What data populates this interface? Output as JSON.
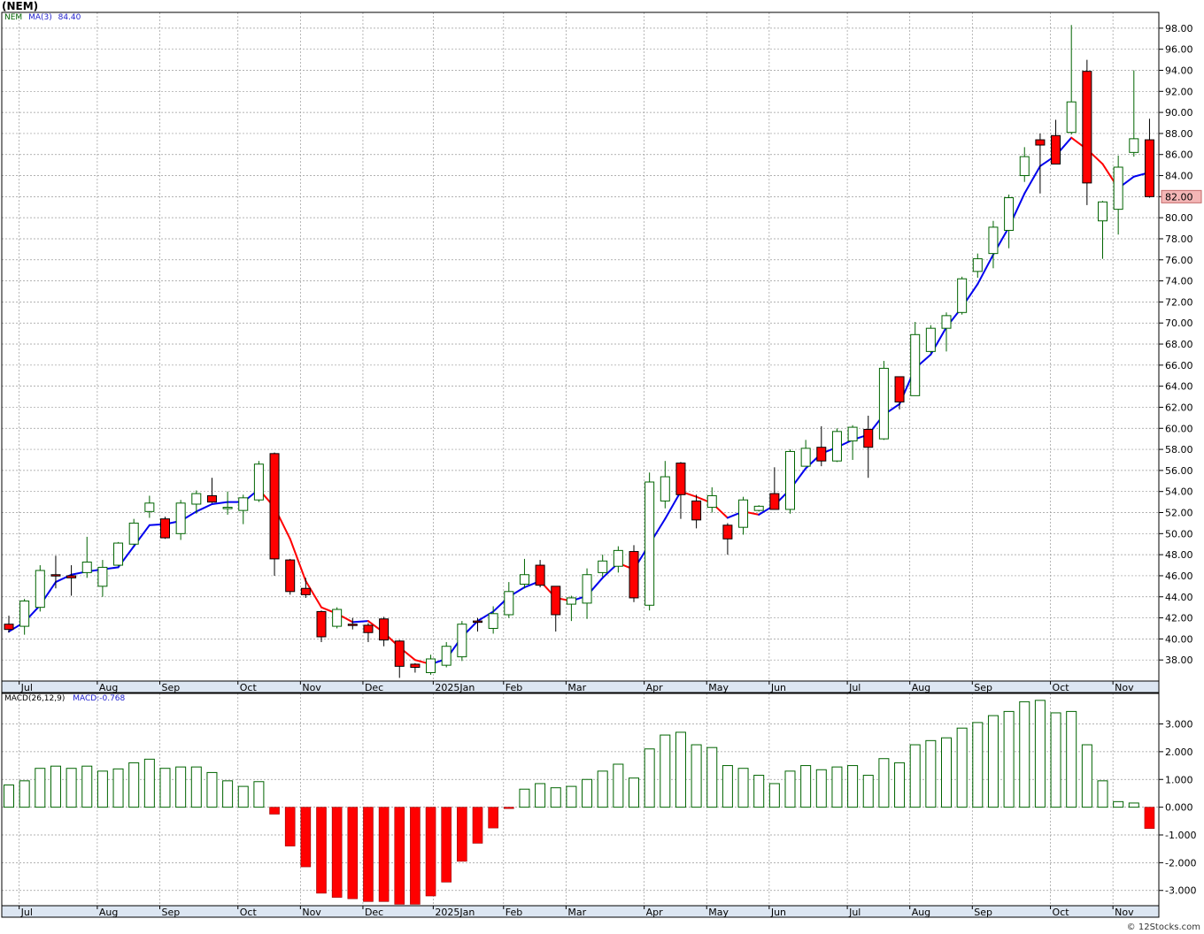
{
  "title": "(NEM)",
  "price_panel": {
    "symbol": "NEM",
    "ma_label": "MA(3)",
    "ma_value": "84.40",
    "last_price": "82.00"
  },
  "macd_panel": {
    "label": "MACD(26,12,9)",
    "value_label": "MACD:",
    "value": "-0.768"
  },
  "credit": "© 12Stocks.com",
  "colors": {
    "up_candle_border": "#006400",
    "down_candle": "#ff0000",
    "ma_up": "#0000ee",
    "ma_down": "#ff0000",
    "grid": "#999999",
    "axis_band": "#dce6f2",
    "last_price_box": "#f4b6b6"
  },
  "chart_data": [
    {
      "type": "candlestick",
      "ylim": [
        36,
        99.5
      ],
      "grid": true,
      "y_ticks": [
        "38.00",
        "40.00",
        "42.00",
        "44.00",
        "46.00",
        "48.00",
        "50.00",
        "52.00",
        "54.00",
        "56.00",
        "58.00",
        "60.00",
        "62.00",
        "64.00",
        "66.00",
        "68.00",
        "70.00",
        "72.00",
        "74.00",
        "76.00",
        "78.00",
        "80.00",
        "82.00",
        "84.00",
        "86.00",
        "88.00",
        "90.00",
        "92.00",
        "94.00",
        "96.00",
        "98.00"
      ],
      "x_ticks": [
        {
          "label": "Jul",
          "index": 1
        },
        {
          "label": "Aug",
          "index": 6
        },
        {
          "label": "Sep",
          "index": 10
        },
        {
          "label": "Oct",
          "index": 15
        },
        {
          "label": "Nov",
          "index": 19
        },
        {
          "label": "Dec",
          "index": 23
        },
        {
          "label": "2025Jan",
          "index": 27.5
        },
        {
          "label": "Feb",
          "index": 32
        },
        {
          "label": "Mar",
          "index": 36
        },
        {
          "label": "Apr",
          "index": 41
        },
        {
          "label": "May",
          "index": 45
        },
        {
          "label": "Jun",
          "index": 49
        },
        {
          "label": "Jul",
          "index": 54
        },
        {
          "label": "Aug",
          "index": 58
        },
        {
          "label": "Sep",
          "index": 62
        },
        {
          "label": "Oct",
          "index": 67
        },
        {
          "label": "Nov",
          "index": 71
        }
      ],
      "candles": [
        {
          "o": 41.4,
          "h": 42.2,
          "l": 40.6,
          "c": 40.9
        },
        {
          "o": 41.2,
          "h": 43.8,
          "l": 40.4,
          "c": 43.6
        },
        {
          "o": 43.0,
          "h": 47.0,
          "l": 42.6,
          "c": 46.5
        },
        {
          "o": 46.1,
          "h": 47.9,
          "l": 44.8,
          "c": 46.0
        },
        {
          "o": 46.0,
          "h": 47.0,
          "l": 44.1,
          "c": 45.8
        },
        {
          "o": 46.3,
          "h": 49.7,
          "l": 45.8,
          "c": 47.3
        },
        {
          "o": 45.0,
          "h": 47.5,
          "l": 44.0,
          "c": 46.8
        },
        {
          "o": 47.0,
          "h": 49.2,
          "l": 46.9,
          "c": 49.1
        },
        {
          "o": 49.0,
          "h": 51.4,
          "l": 48.9,
          "c": 51.0
        },
        {
          "o": 52.1,
          "h": 53.6,
          "l": 51.5,
          "c": 52.9
        },
        {
          "o": 51.4,
          "h": 51.6,
          "l": 49.5,
          "c": 49.6
        },
        {
          "o": 50.0,
          "h": 53.2,
          "l": 49.4,
          "c": 52.9
        },
        {
          "o": 52.8,
          "h": 54.1,
          "l": 51.9,
          "c": 53.8
        },
        {
          "o": 53.6,
          "h": 55.3,
          "l": 52.9,
          "c": 53.0
        },
        {
          "o": 52.5,
          "h": 54.0,
          "l": 51.8,
          "c": 52.5
        },
        {
          "o": 52.2,
          "h": 53.7,
          "l": 50.9,
          "c": 53.4
        },
        {
          "o": 53.2,
          "h": 56.9,
          "l": 53.0,
          "c": 56.6
        },
        {
          "o": 57.6,
          "h": 57.7,
          "l": 46.0,
          "c": 47.6
        },
        {
          "o": 47.5,
          "h": 47.6,
          "l": 44.2,
          "c": 44.5
        },
        {
          "o": 44.8,
          "h": 45.8,
          "l": 43.9,
          "c": 44.2
        },
        {
          "o": 42.6,
          "h": 42.7,
          "l": 39.7,
          "c": 40.2
        },
        {
          "o": 41.2,
          "h": 43.0,
          "l": 41.0,
          "c": 42.8
        },
        {
          "o": 41.4,
          "h": 42.0,
          "l": 40.9,
          "c": 41.3
        },
        {
          "o": 41.3,
          "h": 41.5,
          "l": 39.7,
          "c": 40.6
        },
        {
          "o": 41.9,
          "h": 42.1,
          "l": 39.3,
          "c": 39.9
        },
        {
          "o": 39.8,
          "h": 39.9,
          "l": 36.3,
          "c": 37.4
        },
        {
          "o": 37.6,
          "h": 37.7,
          "l": 36.8,
          "c": 37.3
        },
        {
          "o": 36.8,
          "h": 38.5,
          "l": 36.6,
          "c": 38.1
        },
        {
          "o": 37.5,
          "h": 39.7,
          "l": 37.3,
          "c": 39.3
        },
        {
          "o": 38.3,
          "h": 41.7,
          "l": 37.9,
          "c": 41.4
        },
        {
          "o": 41.7,
          "h": 42.0,
          "l": 40.7,
          "c": 41.6
        },
        {
          "o": 41.0,
          "h": 43.1,
          "l": 40.5,
          "c": 42.4
        },
        {
          "o": 42.3,
          "h": 45.4,
          "l": 42.0,
          "c": 44.5
        },
        {
          "o": 45.2,
          "h": 47.6,
          "l": 44.8,
          "c": 46.1
        },
        {
          "o": 47.0,
          "h": 47.5,
          "l": 44.9,
          "c": 45.1
        },
        {
          "o": 45.0,
          "h": 45.0,
          "l": 40.7,
          "c": 42.3
        },
        {
          "o": 43.3,
          "h": 44.1,
          "l": 41.7,
          "c": 43.9
        },
        {
          "o": 43.4,
          "h": 46.7,
          "l": 41.9,
          "c": 46.1
        },
        {
          "o": 46.3,
          "h": 48.0,
          "l": 45.9,
          "c": 47.4
        },
        {
          "o": 46.9,
          "h": 48.8,
          "l": 46.3,
          "c": 48.4
        },
        {
          "o": 48.3,
          "h": 48.9,
          "l": 43.5,
          "c": 43.9
        },
        {
          "o": 43.2,
          "h": 55.8,
          "l": 42.7,
          "c": 54.9
        },
        {
          "o": 53.1,
          "h": 56.9,
          "l": 52.4,
          "c": 55.4
        },
        {
          "o": 56.7,
          "h": 56.8,
          "l": 51.4,
          "c": 53.7
        },
        {
          "o": 53.1,
          "h": 53.7,
          "l": 50.5,
          "c": 51.3
        },
        {
          "o": 52.5,
          "h": 54.4,
          "l": 52.0,
          "c": 53.6
        },
        {
          "o": 50.8,
          "h": 51.0,
          "l": 48.0,
          "c": 49.5
        },
        {
          "o": 50.6,
          "h": 53.5,
          "l": 49.9,
          "c": 53.2
        },
        {
          "o": 52.2,
          "h": 52.7,
          "l": 52.1,
          "c": 52.6
        },
        {
          "o": 53.8,
          "h": 56.3,
          "l": 52.3,
          "c": 52.3
        },
        {
          "o": 52.3,
          "h": 58.0,
          "l": 51.9,
          "c": 57.8
        },
        {
          "o": 56.4,
          "h": 58.9,
          "l": 56.4,
          "c": 58.1
        },
        {
          "o": 58.2,
          "h": 60.2,
          "l": 56.4,
          "c": 56.9
        },
        {
          "o": 56.9,
          "h": 60.0,
          "l": 56.8,
          "c": 59.7
        },
        {
          "o": 58.8,
          "h": 60.3,
          "l": 57.0,
          "c": 60.1
        },
        {
          "o": 59.9,
          "h": 61.2,
          "l": 55.3,
          "c": 58.2
        },
        {
          "o": 59.0,
          "h": 66.4,
          "l": 58.9,
          "c": 65.7
        },
        {
          "o": 64.9,
          "h": 64.9,
          "l": 61.8,
          "c": 62.5
        },
        {
          "o": 63.1,
          "h": 70.1,
          "l": 63.1,
          "c": 68.9
        },
        {
          "o": 67.3,
          "h": 69.8,
          "l": 67.1,
          "c": 69.5
        },
        {
          "o": 69.5,
          "h": 71.0,
          "l": 67.3,
          "c": 70.7
        },
        {
          "o": 71.0,
          "h": 74.4,
          "l": 70.8,
          "c": 74.2
        },
        {
          "o": 74.9,
          "h": 76.6,
          "l": 74.3,
          "c": 76.1
        },
        {
          "o": 76.6,
          "h": 79.7,
          "l": 75.2,
          "c": 79.1
        },
        {
          "o": 78.8,
          "h": 82.2,
          "l": 77.1,
          "c": 81.9
        },
        {
          "o": 84.0,
          "h": 86.7,
          "l": 83.4,
          "c": 85.8
        },
        {
          "o": 87.4,
          "h": 88.0,
          "l": 82.3,
          "c": 86.9
        },
        {
          "o": 87.8,
          "h": 89.3,
          "l": 85.3,
          "c": 85.1
        },
        {
          "o": 88.1,
          "h": 98.3,
          "l": 87.9,
          "c": 91.0
        },
        {
          "o": 93.9,
          "h": 95.0,
          "l": 81.2,
          "c": 83.3
        },
        {
          "o": 79.7,
          "h": 81.6,
          "l": 76.1,
          "c": 81.5
        },
        {
          "o": 80.8,
          "h": 85.9,
          "l": 78.4,
          "c": 84.8
        },
        {
          "o": 86.2,
          "h": 94.0,
          "l": 85.8,
          "c": 87.5
        },
        {
          "o": 87.4,
          "h": 89.4,
          "l": 81.9,
          "c": 82.0
        }
      ],
      "ma3": [
        40.7,
        41.6,
        43.2,
        45.4,
        46.1,
        46.4,
        46.6,
        46.8,
        48.8,
        50.8,
        50.9,
        51.2,
        52.1,
        52.8,
        53.0,
        53.0,
        54.2,
        52.5,
        49.5,
        45.5,
        43.0,
        42.4,
        41.6,
        41.7,
        40.6,
        39.2,
        38.0,
        37.6,
        38.1,
        40.2,
        41.7,
        42.6,
        44.0,
        44.9,
        45.5,
        43.9,
        43.6,
        44.1,
        45.8,
        47.2,
        46.6,
        49.0,
        51.4,
        54.0,
        53.5,
        52.9,
        51.5,
        52.1,
        51.8,
        52.7,
        54.2,
        56.2,
        57.6,
        58.2,
        58.9,
        59.4,
        61.3,
        62.3,
        65.7,
        67.0,
        69.6,
        71.5,
        73.7,
        76.5,
        79.1,
        82.3,
        84.9,
        85.9,
        87.6,
        86.5,
        85.1,
        82.8,
        83.9,
        84.3
      ]
    },
    {
      "type": "bar",
      "label": "MACD(26,12,9)",
      "ylim": [
        -3.55,
        4.1
      ],
      "grid": true,
      "y_ticks": [
        "-3.000",
        "-2.000",
        "-1.000",
        "0.000",
        "1.000",
        "2.000",
        "3.000"
      ],
      "values": [
        0.8,
        0.95,
        1.4,
        1.48,
        1.4,
        1.48,
        1.3,
        1.38,
        1.6,
        1.73,
        1.4,
        1.45,
        1.45,
        1.25,
        0.95,
        0.75,
        0.92,
        -0.25,
        -1.4,
        -2.15,
        -3.1,
        -3.25,
        -3.3,
        -3.4,
        -3.4,
        -3.5,
        -3.5,
        -3.2,
        -2.7,
        -1.95,
        -1.3,
        -0.75,
        -0.05,
        0.65,
        0.85,
        0.7,
        0.75,
        1.0,
        1.3,
        1.55,
        1.05,
        2.1,
        2.6,
        2.7,
        2.25,
        2.15,
        1.5,
        1.4,
        1.15,
        0.85,
        1.3,
        1.5,
        1.35,
        1.45,
        1.5,
        1.15,
        1.75,
        1.6,
        2.25,
        2.4,
        2.5,
        2.85,
        3.05,
        3.3,
        3.45,
        3.8,
        3.85,
        3.4,
        3.45,
        2.25,
        0.95,
        0.2,
        0.15,
        -0.77
      ]
    }
  ]
}
